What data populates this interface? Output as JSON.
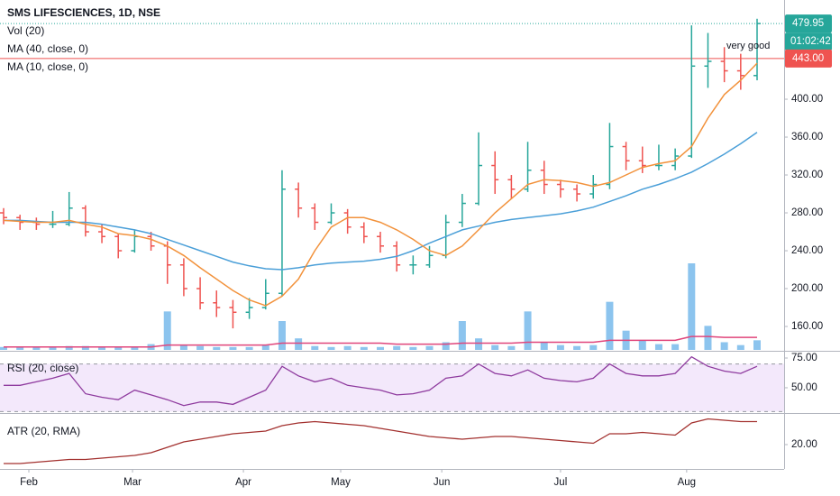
{
  "chart_data": [
    {
      "type": "ohlc",
      "title": "SMS LIFESCIENCES, 1D, NSE",
      "up_color": "#26a69a",
      "down_color": "#ef5350",
      "bars": [
        [
          280,
          285,
          268,
          275
        ],
        [
          275,
          278,
          262,
          270
        ],
        [
          270,
          275,
          262,
          268
        ],
        [
          268,
          282,
          264,
          268
        ],
        [
          268,
          302,
          266,
          285
        ],
        [
          285,
          288,
          255,
          260
        ],
        [
          260,
          268,
          248,
          255
        ],
        [
          255,
          258,
          232,
          240
        ],
        [
          240,
          262,
          238,
          255
        ],
        [
          255,
          260,
          240,
          245
        ],
        [
          245,
          250,
          205,
          225
        ],
        [
          225,
          232,
          192,
          200
        ],
        [
          200,
          212,
          178,
          185
        ],
        [
          185,
          198,
          170,
          180
        ],
        [
          180,
          188,
          158,
          175
        ],
        [
          175,
          190,
          168,
          180
        ],
        [
          180,
          210,
          178,
          195
        ],
        [
          195,
          325,
          192,
          305
        ],
        [
          305,
          312,
          275,
          285
        ],
        [
          285,
          290,
          262,
          270
        ],
        [
          270,
          290,
          268,
          280
        ],
        [
          280,
          284,
          258,
          265
        ],
        [
          265,
          270,
          248,
          255
        ],
        [
          255,
          260,
          238,
          245
        ],
        [
          245,
          250,
          218,
          225
        ],
        [
          225,
          235,
          215,
          225
        ],
        [
          225,
          245,
          222,
          235
        ],
        [
          235,
          278,
          232,
          270
        ],
        [
          270,
          300,
          265,
          290
        ],
        [
          290,
          365,
          288,
          330
        ],
        [
          330,
          345,
          300,
          315
        ],
        [
          315,
          320,
          295,
          305
        ],
        [
          305,
          355,
          302,
          325
        ],
        [
          325,
          335,
          300,
          310
        ],
        [
          310,
          315,
          296,
          305
        ],
        [
          305,
          310,
          292,
          300
        ],
        [
          300,
          320,
          295,
          310
        ],
        [
          310,
          375,
          305,
          350
        ],
        [
          350,
          355,
          325,
          335
        ],
        [
          335,
          350,
          322,
          330
        ],
        [
          330,
          352,
          325,
          330
        ],
        [
          330,
          348,
          325,
          340
        ],
        [
          340,
          478,
          338,
          435
        ],
        [
          435,
          470,
          412,
          440
        ],
        [
          440,
          455,
          418,
          430
        ],
        [
          430,
          448,
          410,
          425
        ],
        [
          425,
          485,
          420,
          479.95
        ]
      ],
      "volume": {
        "name": "Vol (20)",
        "color": "#8cc4ee",
        "ma_color": "#e0457b",
        "values": [
          3,
          3,
          3,
          3,
          4,
          4,
          3,
          3,
          3,
          6,
          40,
          5,
          4,
          3,
          3,
          3,
          5,
          30,
          12,
          4,
          3,
          4,
          3,
          3,
          4,
          3,
          4,
          8,
          30,
          12,
          5,
          4,
          40,
          8,
          5,
          4,
          5,
          50,
          20,
          10,
          6,
          6,
          90,
          25,
          8,
          5,
          10
        ],
        "ma_values": [
          3,
          3,
          3,
          3,
          3,
          3,
          3,
          3,
          3,
          3,
          5,
          5,
          5,
          5,
          5,
          5,
          5,
          7,
          7,
          7,
          7,
          7,
          7,
          7,
          6,
          6,
          6,
          6,
          7,
          7,
          7,
          7,
          8,
          8,
          8,
          8,
          8,
          10,
          10,
          10,
          10,
          10,
          14,
          14,
          13,
          13,
          13
        ]
      },
      "series": [
        {
          "name": "MA (40, close, 0)",
          "color": "#4a9fd8",
          "values": [
            272,
            272,
            271,
            270,
            270,
            270,
            268,
            265,
            262,
            258,
            252,
            246,
            240,
            234,
            228,
            224,
            221,
            220,
            222,
            225,
            227,
            228,
            229,
            231,
            234,
            240,
            248,
            255,
            262,
            266,
            270,
            273,
            275,
            277,
            279,
            282,
            286,
            292,
            298,
            305,
            310,
            316,
            323,
            332,
            342,
            353,
            365
          ]
        },
        {
          "name": "MA (10, close, 0)",
          "color": "#f2923c",
          "values": [
            272,
            271,
            270,
            270,
            272,
            268,
            265,
            258,
            256,
            252,
            245,
            235,
            222,
            210,
            198,
            188,
            182,
            192,
            210,
            240,
            265,
            275,
            275,
            270,
            262,
            252,
            240,
            235,
            245,
            262,
            280,
            295,
            310,
            315,
            314,
            312,
            308,
            312,
            320,
            328,
            332,
            335,
            350,
            380,
            405,
            420,
            438
          ]
        }
      ],
      "ylim": [
        134.3,
        504.8
      ],
      "yticks": [
        {
          "value": 160,
          "label": "160.00"
        },
        {
          "value": 200,
          "label": "200.00"
        },
        {
          "value": 240,
          "label": "240.00"
        },
        {
          "value": 280,
          "label": "280.00"
        },
        {
          "value": 320,
          "label": "320.00"
        },
        {
          "value": 360,
          "label": "360.00"
        },
        {
          "value": 400,
          "label": "400.00"
        }
      ],
      "xticks": [
        {
          "value": 1.54,
          "label": "Feb"
        },
        {
          "value": 7.87,
          "label": "Mar"
        },
        {
          "value": 14.64,
          "label": "Apr"
        },
        {
          "value": 20.58,
          "label": "May"
        },
        {
          "value": 26.75,
          "label": "Jun"
        },
        {
          "value": 34,
          "label": "Jul"
        },
        {
          "value": 41.7,
          "label": "Aug"
        }
      ],
      "last_price": 479.95,
      "last_color": "#26a69a",
      "countdown": "01:02:42",
      "price_line": {
        "value": 443,
        "label": "443.00"
      },
      "price_line_color": "#ef5350",
      "annotation": "very good",
      "grid": false
    },
    {
      "type": "line",
      "title": "RSI (20, close)",
      "color": "#8e3a9e",
      "band_color": "#f3e8fb",
      "bands": [
        30,
        70
      ],
      "values": [
        52,
        52,
        55,
        58,
        62,
        45,
        42,
        40,
        48,
        44,
        40,
        35,
        38,
        38,
        36,
        42,
        48,
        68,
        60,
        55,
        58,
        52,
        50,
        48,
        44,
        45,
        48,
        58,
        60,
        70,
        62,
        60,
        65,
        58,
        56,
        55,
        58,
        70,
        62,
        60,
        60,
        62,
        76,
        68,
        64,
        62,
        68
      ],
      "ylim": [
        29.5,
        80.3
      ],
      "yticks": [
        {
          "value": 50,
          "label": "50.00"
        },
        {
          "value": 75,
          "label": "75.00"
        }
      ]
    },
    {
      "type": "line",
      "title": "ATR (20, RMA)",
      "color": "#a3312f",
      "values": [
        13,
        13,
        13.5,
        14,
        14.5,
        14.5,
        15,
        15.5,
        16,
        17,
        19,
        21,
        22,
        23,
        24,
        24.5,
        25,
        27,
        28,
        28.5,
        28,
        27.5,
        27,
        26,
        25,
        24,
        23,
        22.5,
        22,
        22.5,
        23,
        23,
        22.5,
        22,
        21.5,
        21,
        20.5,
        24,
        24,
        24.5,
        24,
        23.5,
        28,
        29.5,
        29,
        28.5,
        28.5
      ],
      "ylim": [
        11,
        31
      ],
      "yticks": [
        {
          "value": 20,
          "label": "20.00"
        }
      ]
    }
  ]
}
